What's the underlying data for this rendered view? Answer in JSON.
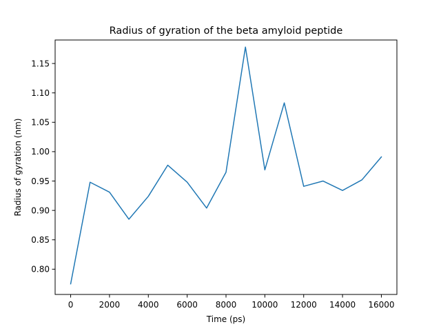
{
  "chart_data": {
    "type": "line",
    "title": "Radius of gyration of the beta amyloid peptide",
    "xlabel": "Time (ps)",
    "ylabel": "Radius of gyration (nm)",
    "xlim": [
      -800,
      16800
    ],
    "ylim": [
      0.757,
      1.19
    ],
    "x_ticks": [
      0,
      2000,
      4000,
      6000,
      8000,
      10000,
      12000,
      14000,
      16000
    ],
    "x_tick_labels": [
      "0",
      "2000",
      "4000",
      "6000",
      "8000",
      "10000",
      "12000",
      "14000",
      "16000"
    ],
    "y_ticks": [
      0.8,
      0.85,
      0.9,
      0.95,
      1.0,
      1.05,
      1.1,
      1.15
    ],
    "y_tick_labels": [
      "0.80",
      "0.85",
      "0.90",
      "0.95",
      "1.00",
      "1.05",
      "1.10",
      "1.15"
    ],
    "grid": false,
    "series": [
      {
        "color": "#1f77b4",
        "x": [
          0,
          1000,
          2000,
          3000,
          4000,
          5000,
          6000,
          7000,
          8000,
          9000,
          10000,
          11000,
          12000,
          13000,
          14000,
          15000,
          16000
        ],
        "values": [
          0.775,
          0.948,
          0.931,
          0.885,
          0.924,
          0.977,
          0.948,
          0.904,
          0.965,
          1.178,
          0.969,
          1.083,
          0.941,
          0.95,
          0.934,
          0.952,
          0.991
        ]
      }
    ]
  }
}
